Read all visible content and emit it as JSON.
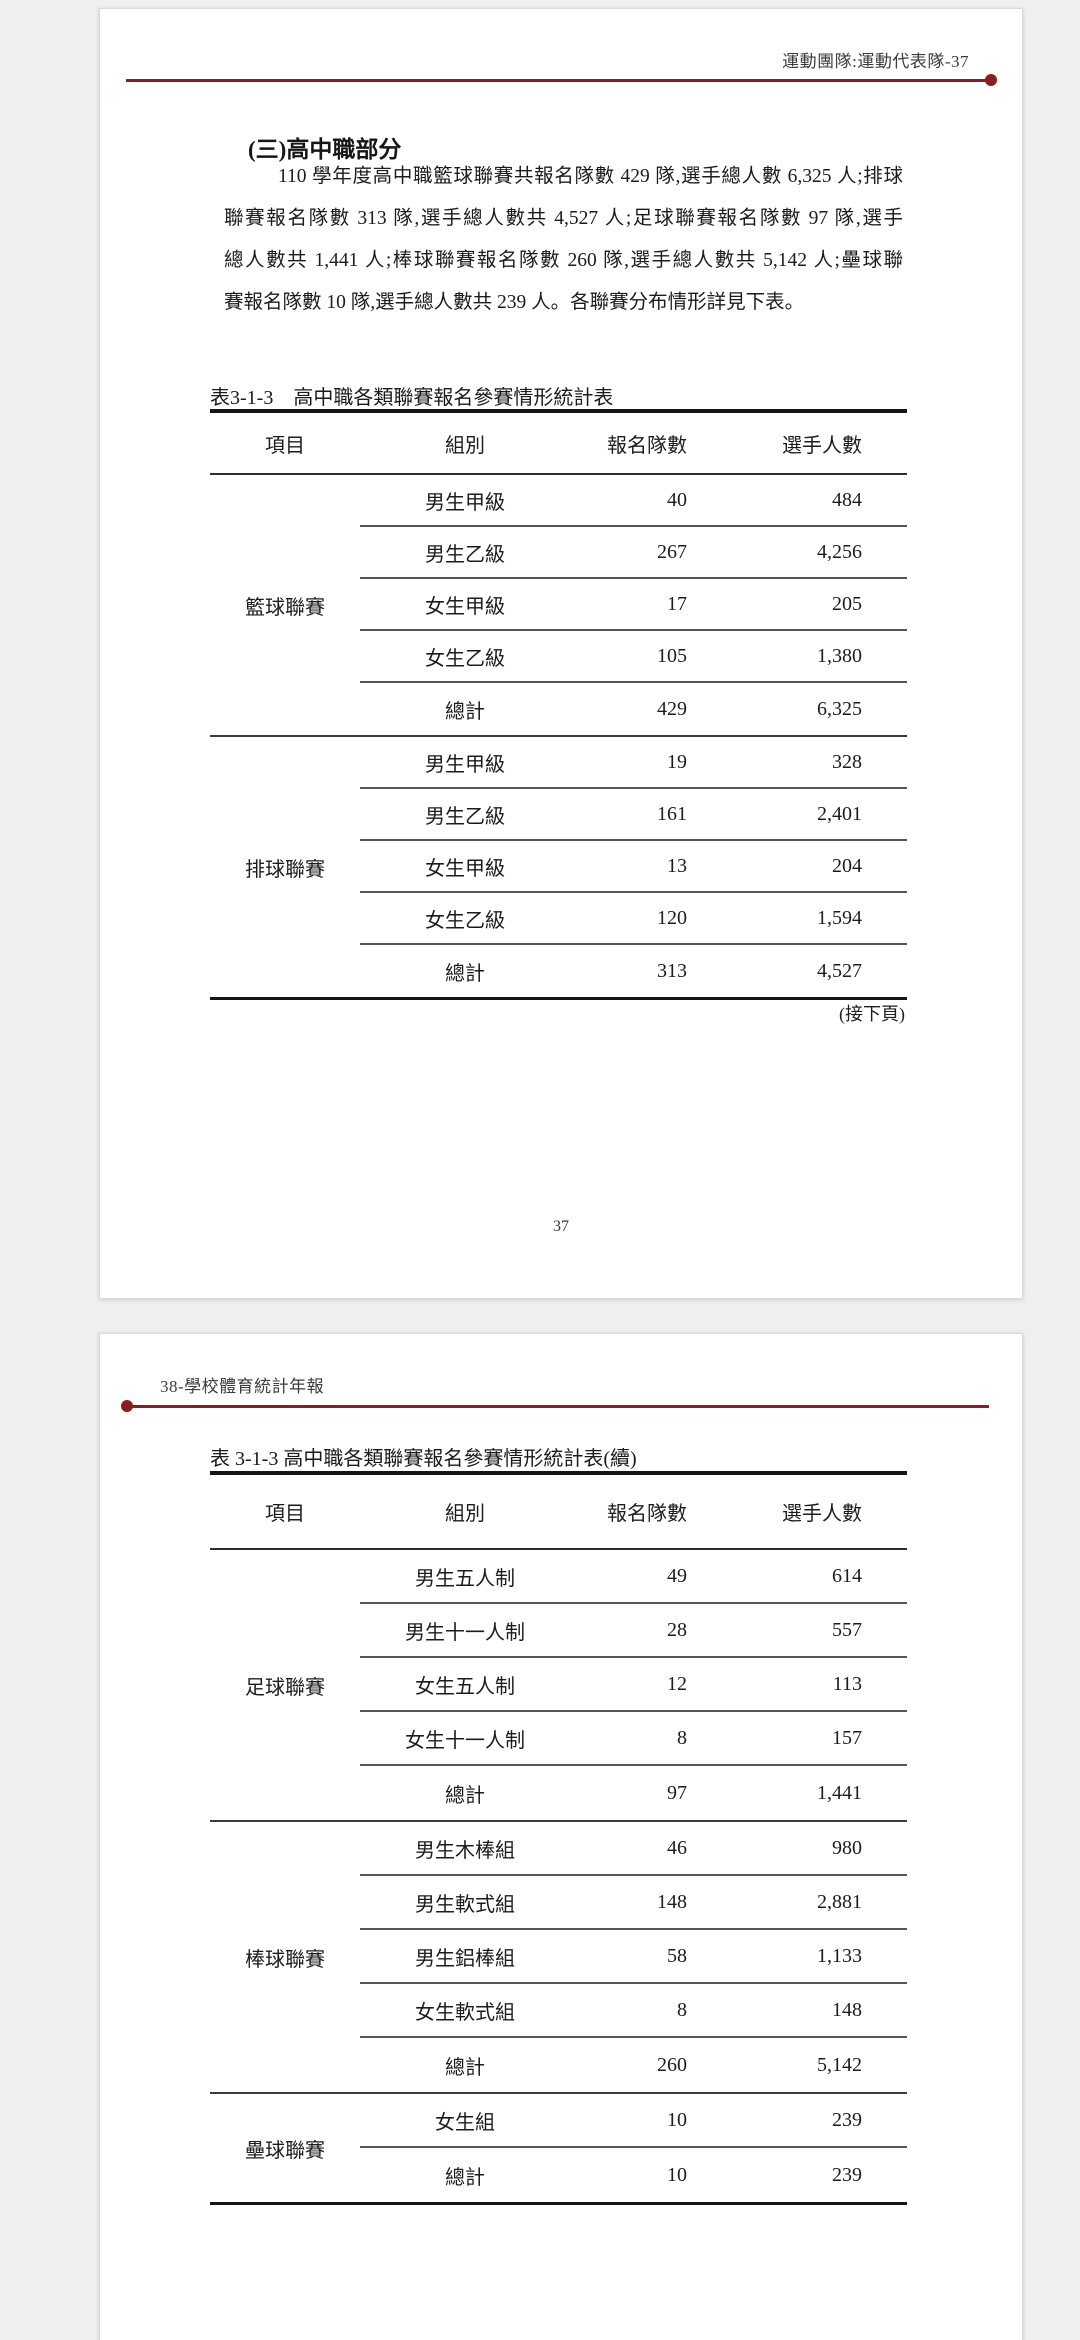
{
  "colors": {
    "accent_line": "#8e1b1e"
  },
  "page1": {
    "header": "運動團隊:運動代表隊-37",
    "section_title": "(三)高中職部分",
    "paragraph_lines": [
      "110 學年度高中職籃球聯賽共報名隊數 429 隊,選手總人數 6,325 人;排球",
      "聯賽報名隊數 313 隊,選手總人數共 4,527 人;足球聯賽報名隊數 97 隊,選手",
      "總人數共 1,441 人;棒球聯賽報名隊數 260 隊,選手總人數共 5,142 人;壘球聯",
      "賽報名隊數 10 隊,選手總人數共 239 人。各聯賽分布情形詳見下表。"
    ],
    "table": {
      "title": "表3-1-3　高中職各類聯賽報名參賽情形統計表",
      "columns": [
        "項目",
        "組別",
        "報名隊數",
        "選手人數"
      ],
      "groups": [
        {
          "name": "籃球聯賽",
          "rows": [
            [
              "男生甲級",
              "40",
              "484"
            ],
            [
              "男生乙級",
              "267",
              "4,256"
            ],
            [
              "女生甲級",
              "17",
              "205"
            ],
            [
              "女生乙級",
              "105",
              "1,380"
            ],
            [
              "總計",
              "429",
              "6,325"
            ]
          ]
        },
        {
          "name": "排球聯賽",
          "rows": [
            [
              "男生甲級",
              "19",
              "328"
            ],
            [
              "男生乙級",
              "161",
              "2,401"
            ],
            [
              "女生甲級",
              "13",
              "204"
            ],
            [
              "女生乙級",
              "120",
              "1,594"
            ],
            [
              "總計",
              "313",
              "4,527"
            ]
          ]
        }
      ]
    },
    "continued_note": "(接下頁)",
    "page_number": "37"
  },
  "page2": {
    "header": "38-學校體育統計年報",
    "table": {
      "title": "表 3-1-3 高中職各類聯賽報名參賽情形統計表(續)",
      "columns": [
        "項目",
        "組別",
        "報名隊數",
        "選手人數"
      ],
      "groups": [
        {
          "name": "足球聯賽",
          "rows": [
            [
              "男生五人制",
              "49",
              "614"
            ],
            [
              "男生十一人制",
              "28",
              "557"
            ],
            [
              "女生五人制",
              "12",
              "113"
            ],
            [
              "女生十一人制",
              "8",
              "157"
            ],
            [
              "總計",
              "97",
              "1,441"
            ]
          ]
        },
        {
          "name": "棒球聯賽",
          "rows": [
            [
              "男生木棒組",
              "46",
              "980"
            ],
            [
              "男生軟式組",
              "148",
              "2,881"
            ],
            [
              "男生鋁棒組",
              "58",
              "1,133"
            ],
            [
              "女生軟式組",
              "8",
              "148"
            ],
            [
              "總計",
              "260",
              "5,142"
            ]
          ]
        },
        {
          "name": "壘球聯賽",
          "rows": [
            [
              "女生組",
              "10",
              "239"
            ],
            [
              "總計",
              "10",
              "239"
            ]
          ]
        }
      ]
    }
  }
}
